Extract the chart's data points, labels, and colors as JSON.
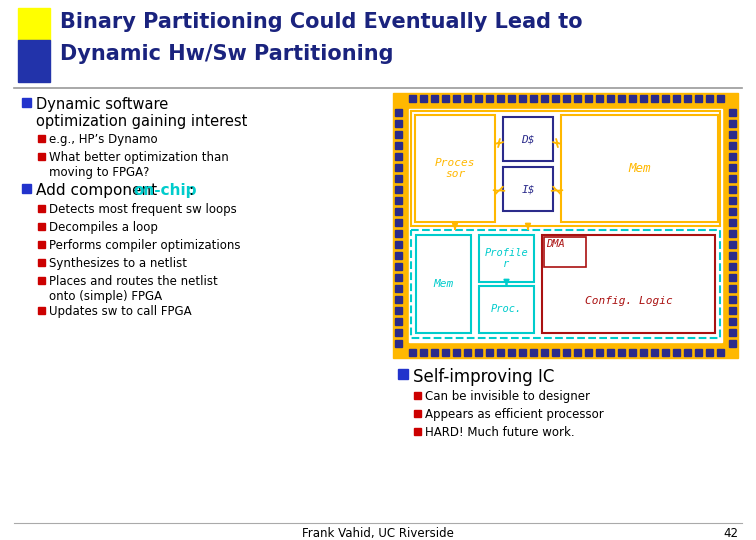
{
  "title_line1": "Binary Partitioning Could Eventually Lead to",
  "title_line2": "Dynamic Hw/Sw Partitioning",
  "title_color": "#1a237e",
  "title_fontsize": 15,
  "background_color": "#ffffff",
  "bullet_blue": "#2233cc",
  "bullet_red": "#cc0000",
  "sub_bullet_items_1": [
    "e.g., HP’s Dynamo",
    "What better optimization than\nmoving to FPGA?"
  ],
  "sub_bullet_items_2": [
    "Detects most frequent sw loops",
    "Decompiles a loop",
    "Performs compiler optimizations",
    "Synthesizes to a netlist",
    "Places and routes the netlist\nonto (simple) FPGA",
    "Updates sw to call FPGA"
  ],
  "self_improving_bullets": [
    "Can be invisible to designer",
    "Appears as efficient processor",
    "HARD! Much future work."
  ],
  "footer_text": "Frank Vahid, UC Riverside",
  "footer_page": "42",
  "chip_gold": "#FFB800",
  "chip_blue_dark": "#2B2B8B",
  "chip_cyan": "#00CCCC",
  "chip_red": "#AA1111",
  "text_gold": "#FFB800",
  "text_cyan": "#00CCCC",
  "text_red": "#AA1111"
}
